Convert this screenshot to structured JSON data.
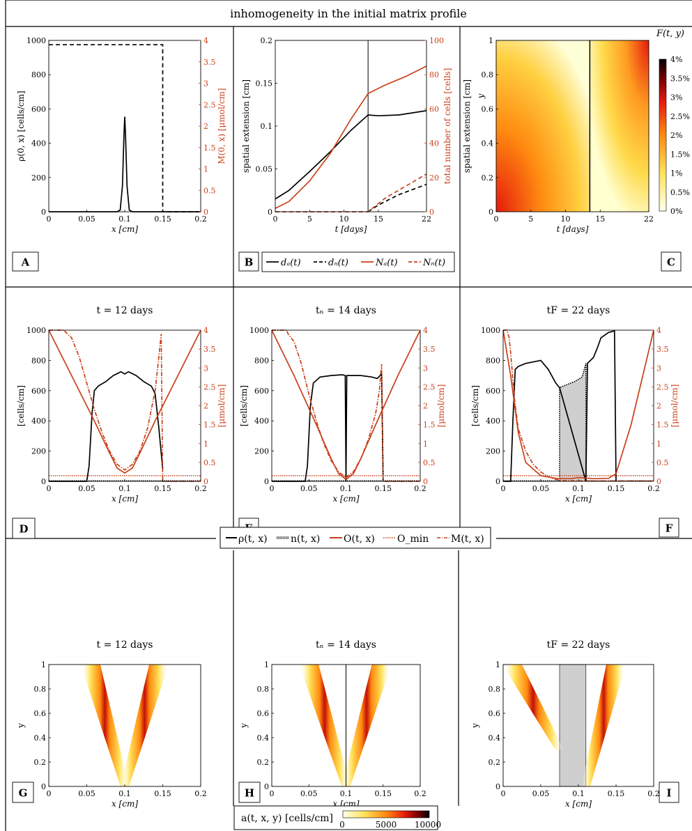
{
  "figure_title": "inhomogeneity in the initial matrix profile",
  "colors": {
    "black": "#000000",
    "orange": "#c8401a",
    "grey": "#cfcfcf"
  },
  "chart_data": [
    {
      "id": "A",
      "panel_label": "A",
      "type": "line",
      "title": "",
      "xlabel": "x  [cm]",
      "ylabel": "ρ(0, x)  [cells/cm]",
      "y2label": "M(0, x)  [μmol/cm]",
      "xlim": [
        0,
        0.2
      ],
      "ylim": [
        0,
        1000
      ],
      "y2lim": [
        0,
        4
      ],
      "xticks": [
        "0",
        "0.05",
        "0.1",
        "0.15",
        "0.2"
      ],
      "yticks": [
        "0",
        "200",
        "400",
        "600",
        "800",
        "1000"
      ],
      "y2ticks": [
        "0",
        "0.5",
        "1",
        "1.5",
        "2",
        "2.5",
        "3",
        "3.5",
        "4"
      ],
      "series": [
        {
          "axis": "left",
          "x": [
            0,
            0.09,
            0.094,
            0.097,
            0.099,
            0.1,
            0.101,
            0.103,
            0.106,
            0.11,
            0.2
          ],
          "y": [
            0,
            0,
            10,
            150,
            450,
            555,
            450,
            150,
            10,
            0,
            0
          ]
        },
        {
          "axis": "right",
          "dash": true,
          "x": [
            0,
            0.15,
            0.15,
            0.2
          ],
          "y": [
            3.9,
            3.9,
            0,
            0
          ]
        }
      ]
    },
    {
      "id": "B",
      "panel_label": "B",
      "type": "line",
      "title": "",
      "xlabel": "t [days]",
      "ylabel": "spatial extension [cm]",
      "y2label": "total number of cells [cells]",
      "xlim": [
        0,
        22
      ],
      "ylim": [
        0,
        0.2
      ],
      "y2lim": [
        0,
        100
      ],
      "xticks": [
        "0",
        "5",
        "10",
        "15",
        "22"
      ],
      "yticks": [
        "0",
        "0.05",
        "0.1",
        "0.15",
        "0.2"
      ],
      "y2ticks": [
        "0",
        "20",
        "40",
        "60",
        "80",
        "100"
      ],
      "vline": 13.5,
      "legend": [
        "dₐ(t)",
        "dₙ(t)",
        "Nₐ(t)",
        "Nₙ(t)"
      ],
      "series": [
        {
          "name": "da(t)",
          "axis": "left",
          "x": [
            0,
            2,
            5,
            8,
            11,
            13.5,
            15,
            18,
            22
          ],
          "y": [
            0.015,
            0.025,
            0.047,
            0.07,
            0.095,
            0.113,
            0.112,
            0.113,
            0.118
          ]
        },
        {
          "name": "dn(t)",
          "axis": "left",
          "dash": true,
          "x": [
            13.5,
            15,
            18,
            22
          ],
          "y": [
            0,
            0.008,
            0.02,
            0.032
          ]
        },
        {
          "name": "Na(t)",
          "axis": "right",
          "orange": true,
          "x": [
            0,
            2,
            5,
            8,
            11,
            13.5,
            16,
            19,
            22
          ],
          "y": [
            2,
            6,
            18,
            34,
            54,
            69,
            74,
            79,
            85
          ]
        },
        {
          "name": "Nn(t)",
          "axis": "right",
          "orange": true,
          "dash": true,
          "x": [
            0,
            13.5,
            16,
            19,
            22
          ],
          "y": [
            0,
            0,
            8,
            15,
            22
          ]
        }
      ]
    },
    {
      "id": "C",
      "panel_label": "C",
      "type": "heatmap",
      "title": "F(t, y)",
      "xlabel": "t [days]",
      "ylabel": "spatial extension [cm]",
      "ylabel2": "y",
      "xlim": [
        0,
        22
      ],
      "ylim": [
        0,
        1
      ],
      "xticks": [
        "0",
        "5",
        "10",
        "15",
        "22"
      ],
      "yticks": [
        "0",
        "0.2",
        "0.4",
        "0.6",
        "0.8",
        "1"
      ],
      "colorbar_ticks": [
        "0%",
        "0.5%",
        "1%",
        "1.5%",
        "2%",
        "2.5%",
        "3%",
        "3.5%",
        "4%"
      ],
      "vline": 13.5
    },
    {
      "id": "D",
      "panel_label": "D",
      "type": "line",
      "title": "t = 12 days",
      "xlabel": "x  [cm]",
      "ylabel": "[cells/cm]",
      "y2label": "[μmol/cm]",
      "xlim": [
        0,
        0.2
      ],
      "ylim": [
        0,
        1000
      ],
      "y2lim": [
        0,
        4
      ],
      "xticks": [
        "0",
        "0.05",
        "0.1",
        "0.15",
        "0.2"
      ],
      "yticks": [
        "0",
        "200",
        "400",
        "600",
        "800",
        "1000"
      ],
      "y2ticks": [
        "0",
        "0.5",
        "1",
        "1.5",
        "2",
        "2.5",
        "3",
        "3.5",
        "4"
      ],
      "omin": 0.15,
      "series": [
        {
          "name": "rho",
          "axis": "left",
          "x": [
            0,
            0.05,
            0.053,
            0.057,
            0.06,
            0.065,
            0.075,
            0.085,
            0.095,
            0.1,
            0.105,
            0.115,
            0.125,
            0.135,
            0.14,
            0.145,
            0.15
          ],
          "y": [
            0,
            0,
            100,
            450,
            600,
            630,
            660,
            700,
            725,
            710,
            725,
            700,
            660,
            630,
            580,
            350,
            80
          ]
        },
        {
          "name": "n",
          "axis": "left",
          "dotted": true,
          "x": [
            0,
            0.2
          ],
          "y": [
            3,
            3
          ]
        },
        {
          "name": "O",
          "axis": "right",
          "orange": true,
          "x": [
            0,
            0.03,
            0.06,
            0.08,
            0.09,
            0.1,
            0.11,
            0.12,
            0.14,
            0.17,
            0.2
          ],
          "y": [
            4,
            2.8,
            1.6,
            0.75,
            0.35,
            0.22,
            0.35,
            0.75,
            1.6,
            2.8,
            4
          ]
        },
        {
          "name": "M",
          "axis": "right",
          "orange": true,
          "dashdot": true,
          "x": [
            0,
            0.02,
            0.022,
            0.03,
            0.04,
            0.05,
            0.06,
            0.07,
            0.08,
            0.09,
            0.1,
            0.11,
            0.12,
            0.13,
            0.14,
            0.145,
            0.148,
            0.15,
            0.2
          ],
          "y": [
            4,
            4,
            3.95,
            3.8,
            3.3,
            2.6,
            1.9,
            1.3,
            0.8,
            0.45,
            0.3,
            0.45,
            0.8,
            1.4,
            2.4,
            3.3,
            3.9,
            0,
            0
          ]
        }
      ]
    },
    {
      "id": "E",
      "panel_label": "E",
      "type": "line",
      "title": "tₙ = 14 days",
      "xlabel": "x  [cm]",
      "ylabel": "[cells/cm]",
      "y2label": "[μmol/cm]",
      "xlim": [
        0,
        0.2
      ],
      "ylim": [
        0,
        1000
      ],
      "y2lim": [
        0,
        4
      ],
      "xticks": [
        "0",
        "0.05",
        "0.1",
        "0.15",
        "0.2"
      ],
      "yticks": [
        "0",
        "200",
        "400",
        "600",
        "800",
        "1000"
      ],
      "y2ticks": [
        "0",
        "0.5",
        "1",
        "1.5",
        "2",
        "2.5",
        "3",
        "3.5",
        "4"
      ],
      "omin": 0.15,
      "series": [
        {
          "name": "rho",
          "axis": "left",
          "x": [
            0,
            0.045,
            0.048,
            0.052,
            0.056,
            0.065,
            0.08,
            0.095,
            0.099,
            0.1,
            0.101,
            0.105,
            0.12,
            0.135,
            0.142,
            0.146,
            0.148,
            0.15
          ],
          "y": [
            0,
            0,
            100,
            500,
            650,
            690,
            700,
            705,
            700,
            0,
            700,
            700,
            700,
            690,
            680,
            700,
            720,
            0
          ]
        },
        {
          "name": "n",
          "axis": "left",
          "dotted": true,
          "x": [
            0,
            0.2
          ],
          "y": [
            3,
            3
          ]
        },
        {
          "name": "O",
          "axis": "right",
          "orange": true,
          "x": [
            0,
            0.03,
            0.06,
            0.08,
            0.09,
            0.1,
            0.11,
            0.12,
            0.14,
            0.17,
            0.2
          ],
          "y": [
            4,
            2.8,
            1.5,
            0.6,
            0.2,
            0.05,
            0.2,
            0.6,
            1.5,
            2.8,
            4
          ]
        },
        {
          "name": "M",
          "axis": "right",
          "orange": true,
          "dashdot": true,
          "x": [
            0,
            0.02,
            0.022,
            0.03,
            0.04,
            0.05,
            0.06,
            0.07,
            0.08,
            0.09,
            0.1,
            0.11,
            0.12,
            0.13,
            0.14,
            0.145,
            0.148,
            0.15,
            0.2
          ],
          "y": [
            4,
            4,
            3.9,
            3.7,
            3.1,
            2.3,
            1.6,
            1.0,
            0.55,
            0.25,
            0.1,
            0.25,
            0.6,
            1.1,
            1.8,
            2.4,
            3.1,
            0,
            0
          ]
        }
      ]
    },
    {
      "id": "F",
      "panel_label": "F",
      "type": "line",
      "title": "tF = 22 days",
      "xlabel": "x  [cm]",
      "ylabel": "[cells/cm]",
      "y2label": "[μmol/cm]",
      "xlim": [
        0,
        0.2
      ],
      "ylim": [
        0,
        1000
      ],
      "y2lim": [
        0,
        4
      ],
      "xticks": [
        "0",
        "0.05",
        "0.1",
        "0.15",
        "0.2"
      ],
      "yticks": [
        "0",
        "200",
        "400",
        "600",
        "800",
        "1000"
      ],
      "y2ticks": [
        "0",
        "0.5",
        "1",
        "1.5",
        "2",
        "2.5",
        "3",
        "3.5",
        "4"
      ],
      "omin": 0.15,
      "shade": [
        0.075,
        0.11
      ],
      "series": [
        {
          "name": "rho",
          "axis": "left",
          "x": [
            0,
            0.01,
            0.013,
            0.016,
            0.02,
            0.03,
            0.04,
            0.05,
            0.06,
            0.07,
            0.075,
            0.11,
            0.112,
            0.12,
            0.125,
            0.13,
            0.14,
            0.148,
            0.15
          ],
          "y": [
            0,
            0,
            400,
            740,
            760,
            780,
            790,
            800,
            740,
            650,
            620,
            0,
            780,
            820,
            880,
            950,
            985,
            995,
            0
          ]
        },
        {
          "name": "n",
          "axis": "left",
          "dotted": true,
          "x": [
            0,
            0.075,
            0.075,
            0.085,
            0.095,
            0.105,
            0.11,
            0.11,
            0.2
          ],
          "y": [
            3,
            3,
            620,
            640,
            660,
            690,
            780,
            3,
            3
          ]
        },
        {
          "name": "O",
          "axis": "right",
          "orange": true,
          "x": [
            0,
            0.01,
            0.02,
            0.03,
            0.05,
            0.07,
            0.09,
            0.1,
            0.12,
            0.14,
            0.15,
            0.17,
            0.2
          ],
          "y": [
            4,
            2.8,
            1.3,
            0.5,
            0.15,
            0.08,
            0.07,
            0.1,
            0.07,
            0.08,
            0.2,
            1.5,
            4
          ]
        },
        {
          "name": "M",
          "axis": "right",
          "orange": true,
          "dashdot": true,
          "x": [
            0,
            0.005,
            0.008,
            0.01,
            0.015,
            0.02,
            0.03,
            0.04,
            0.05,
            0.06,
            0.07,
            0.08,
            0.11,
            0.2
          ],
          "y": [
            4,
            4,
            3.8,
            3.4,
            2.2,
            1.4,
            0.8,
            0.45,
            0.25,
            0.12,
            0.05,
            0.02,
            0.01,
            0.01
          ]
        }
      ]
    },
    {
      "id": "G",
      "panel_label": "G",
      "type": "heatmap",
      "title": "t = 12 days",
      "xlabel": "x  [cm]",
      "ylabel": "y",
      "xlim": [
        0,
        0.2
      ],
      "ylim": [
        0,
        1
      ],
      "xticks": [
        "0",
        "0.05",
        "0.1",
        "0.15",
        "0.2"
      ],
      "yticks": [
        "0",
        "0.2",
        "0.4",
        "0.6",
        "0.8",
        "1"
      ],
      "bands": [
        {
          "x0": 0.1,
          "x1": 0.055
        },
        {
          "x0": 0.1,
          "x1": 0.145
        }
      ]
    },
    {
      "id": "H",
      "panel_label": "H",
      "type": "heatmap",
      "title": "tₙ = 14 days",
      "xlabel": "x  [cm]",
      "ylabel": "y",
      "xlim": [
        0,
        0.2
      ],
      "ylim": [
        0,
        1
      ],
      "xticks": [
        "0",
        "0.05",
        "0.1",
        "0.15",
        "0.2"
      ],
      "yticks": [
        "0",
        "0.2",
        "0.4",
        "0.6",
        "0.8",
        "1"
      ],
      "vline_x": 0.1,
      "bands": [
        {
          "x0": 0.1,
          "x1": 0.05
        },
        {
          "x0": 0.1,
          "x1": 0.148
        }
      ]
    },
    {
      "id": "I",
      "panel_label": "I",
      "type": "heatmap",
      "title": "tF = 22 days",
      "xlabel": "x  [cm]",
      "ylabel": "y",
      "xlim": [
        0,
        0.2
      ],
      "ylim": [
        0,
        1
      ],
      "xticks": [
        "0",
        "0.05",
        "0.1",
        "0.15",
        "0.2"
      ],
      "yticks": [
        "0",
        "0.2",
        "0.4",
        "0.6",
        "0.8",
        "1"
      ],
      "shade": [
        0.075,
        0.11
      ],
      "bands": [
        {
          "x0": 0.075,
          "y0": 0.3,
          "x1": 0.012
        },
        {
          "x0": 0.11,
          "y0": 0,
          "x1": 0.15
        }
      ]
    }
  ],
  "legend_middle": [
    "ρ(t, x)",
    "n(t, x)",
    "O(t, x)",
    "O_min",
    "M(t, x)"
  ],
  "legend_bottom": {
    "label": "a(t, x, y)  [cells/cm]",
    "ticks": [
      "0",
      "5000",
      "10000"
    ]
  }
}
